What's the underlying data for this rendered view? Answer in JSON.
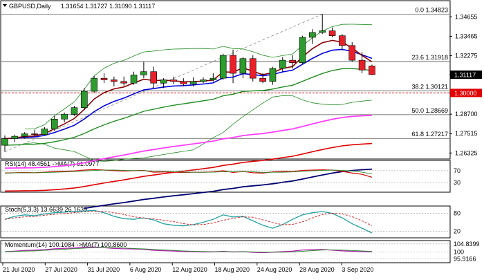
{
  "header": {
    "symbol": "GBPUSD,Daily",
    "ohlc": "1.31654 1.31727 1.31090 1.31117"
  },
  "colors": {
    "bull": "#2e9b2e",
    "bear": "#e8202a",
    "ema_fast": "#8b0000",
    "ema_mid": "#0000e0",
    "ema_slow": "#1e8c1e",
    "sma_pink": "#ff3cff",
    "sma_red": "#e00000",
    "sma_navy": "#000070",
    "bb": "#1e8c1e",
    "hline": "#505050",
    "level_red": "#e00000",
    "current_bg": "#000000",
    "level_bg": "#e00000"
  },
  "chart_data": [
    {
      "type": "candlestick",
      "x_ticks": [
        "21 Jul 2020",
        "27 Jul 2020",
        "31 Jul 2020",
        "6 Aug 2020",
        "12 Aug 2020",
        "18 Aug 2020",
        "24 Aug 2020",
        "28 Aug 2020",
        "3 Sep 2020"
      ],
      "y_ticks": [
        1.34655,
        1.33465,
        1.32275,
        1.31117,
        1.3,
        1.287,
        1.27515,
        1.26325
      ],
      "ylim": [
        1.26,
        1.356
      ],
      "fib_levels": [
        {
          "label": "0.0 1.34823",
          "value": 1.34823
        },
        {
          "label": "23.6 1.31918",
          "value": 1.31918
        },
        {
          "label": "38.2 1.30121",
          "value": 1.30121
        },
        {
          "label": "50.0 1.28669",
          "value": 1.28669
        },
        {
          "label": "61.8 1.27217",
          "value": 1.27217
        }
      ],
      "current_price": {
        "label": "1.31117",
        "value": 1.31117
      },
      "level_line": {
        "label": "1.30000",
        "value": 1.3
      },
      "candles": [
        [
          1.268,
          1.274,
          1.264,
          1.272
        ],
        [
          1.272,
          1.2745,
          1.27,
          1.2735
        ],
        [
          1.2735,
          1.276,
          1.272,
          1.275
        ],
        [
          1.275,
          1.2775,
          1.2735,
          1.2745
        ],
        [
          1.2745,
          1.279,
          1.274,
          1.278
        ],
        [
          1.278,
          1.286,
          1.277,
          1.284
        ],
        [
          1.284,
          1.288,
          1.282,
          1.287
        ],
        [
          1.287,
          1.292,
          1.286,
          1.291
        ],
        [
          1.291,
          1.303,
          1.29,
          1.301
        ],
        [
          1.301,
          1.3105,
          1.3,
          1.309
        ],
        [
          1.309,
          1.312,
          1.306,
          1.308
        ],
        [
          1.308,
          1.31,
          1.304,
          1.307
        ],
        [
          1.307,
          1.31,
          1.3045,
          1.306
        ],
        [
          1.306,
          1.313,
          1.305,
          1.311
        ],
        [
          1.311,
          1.319,
          1.309,
          1.313
        ],
        [
          1.313,
          1.316,
          1.303,
          1.306
        ],
        [
          1.306,
          1.309,
          1.303,
          1.308
        ],
        [
          1.308,
          1.31,
          1.3055,
          1.307
        ],
        [
          1.307,
          1.309,
          1.304,
          1.3055
        ],
        [
          1.3055,
          1.3095,
          1.304,
          1.307
        ],
        [
          1.307,
          1.3095,
          1.306,
          1.308
        ],
        [
          1.308,
          1.312,
          1.307,
          1.309
        ],
        [
          1.309,
          1.324,
          1.308,
          1.323
        ],
        [
          1.323,
          1.3265,
          1.306,
          1.312
        ],
        [
          1.312,
          1.322,
          1.309,
          1.321
        ],
        [
          1.321,
          1.323,
          1.307,
          1.309
        ],
        [
          1.309,
          1.312,
          1.306,
          1.307
        ],
        [
          1.307,
          1.316,
          1.305,
          1.315
        ],
        [
          1.315,
          1.322,
          1.313,
          1.32
        ],
        [
          1.32,
          1.323,
          1.315,
          1.3185
        ],
        [
          1.3185,
          1.335,
          1.318,
          1.334
        ],
        [
          1.334,
          1.339,
          1.33,
          1.337
        ],
        [
          1.337,
          1.3482,
          1.336,
          1.338
        ],
        [
          1.338,
          1.34,
          1.334,
          1.335
        ],
        [
          1.335,
          1.336,
          1.326,
          1.329
        ],
        [
          1.329,
          1.331,
          1.319,
          1.32
        ],
        [
          1.32,
          1.325,
          1.312,
          1.314
        ],
        [
          1.3165,
          1.3173,
          1.3109,
          1.3112
        ]
      ]
    },
    {
      "type": "line",
      "indicator": "RSI(14) 48.4561 ->MA(7) 61.0977",
      "y_ticks": [
        70,
        30
      ],
      "series": [
        {
          "name": "RSI(14)",
          "values": [
            62,
            63,
            64,
            63,
            65,
            67,
            68,
            69,
            72,
            74,
            72,
            70,
            69,
            70,
            71,
            65,
            66,
            65,
            64,
            65,
            65,
            66,
            70,
            64,
            68,
            63,
            62,
            66,
            68,
            67,
            71,
            72,
            73,
            72,
            68,
            62,
            58,
            48
          ]
        }
      ]
    },
    {
      "type": "line",
      "indicator": "Stoch(5,3,3) 13.6639 26.1639",
      "y_ticks": [
        80,
        20
      ],
      "series": [
        {
          "name": "Stoch(5,3,3)",
          "values": [
            60,
            70,
            75,
            72,
            78,
            82,
            84,
            86,
            88,
            90,
            82,
            70,
            62,
            60,
            65,
            58,
            45,
            40,
            38,
            42,
            50,
            60,
            75,
            68,
            70,
            55,
            40,
            30,
            42,
            60,
            75,
            82,
            86,
            80,
            65,
            45,
            30,
            14
          ]
        }
      ]
    },
    {
      "type": "line",
      "indicator": "Momentum(14) 100.1084 ->MA(7) 100.8600",
      "y_ticks": [
        104.8399,
        100,
        95.9166
      ],
      "series": [
        {
          "name": "Momentum(14)",
          "values": [
            100.2,
            100.5,
            100.9,
            101.1,
            101.4,
            101.9,
            102.2,
            102.4,
            102.8,
            103.0,
            102.6,
            102.1,
            101.9,
            101.8,
            101.6,
            101.0,
            100.8,
            100.6,
            100.3,
            100.2,
            100.0,
            100.1,
            100.4,
            100.0,
            100.2,
            99.8,
            99.6,
            99.9,
            100.2,
            100.5,
            101.2,
            101.4,
            101.5,
            101.1,
            100.7,
            100.4,
            100.2,
            100.1
          ]
        }
      ]
    }
  ]
}
